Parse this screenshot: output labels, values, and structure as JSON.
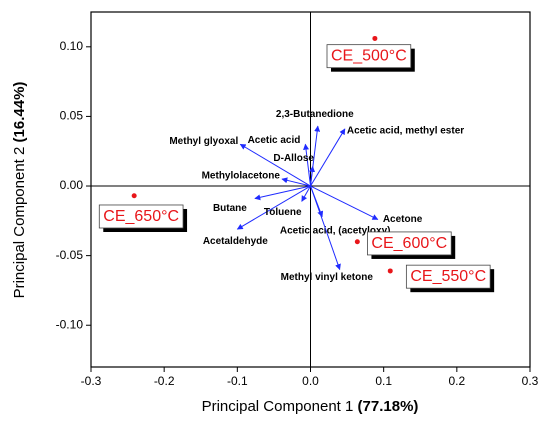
{
  "chart_data": {
    "type": "biplot",
    "x_label": {
      "text": "Principal Component 1",
      "emphasis": "(77.18%)"
    },
    "y_label": {
      "text": "Principal Component 2",
      "emphasis": "(16.44%)"
    },
    "xlim": [
      -0.3,
      0.3
    ],
    "ylim": [
      -0.13,
      0.125
    ],
    "xticks": [
      -0.3,
      -0.2,
      -0.1,
      {
        "value": 0,
        "label": "0.0"
      },
      0.1,
      0.2,
      0.3
    ],
    "yticks": [
      {
        "value": -0.1,
        "label": "-0.10"
      },
      -0.05,
      {
        "value": 0,
        "label": "0.00"
      },
      0.05,
      {
        "value": 0.1,
        "label": "0.10"
      }
    ],
    "score_color": "#e8161a",
    "loading_color": "#1f2bff",
    "scores": [
      {
        "name": "CE_500°C",
        "x": 0.088,
        "y": 0.106
      },
      {
        "name": "CE_650°C",
        "x": -0.241,
        "y": -0.007
      },
      {
        "name": "CE_600°C",
        "x": 0.064,
        "y": -0.04
      },
      {
        "name": "CE_550°C",
        "x": 0.109,
        "y": -0.061
      }
    ],
    "loadings": [
      {
        "name": "2,3-Butanedione",
        "x": 0.01,
        "y": 0.043
      },
      {
        "name": "Acetic acid, methyl ester",
        "x": 0.047,
        "y": 0.041
      },
      {
        "name": "Acetic acid",
        "x": -0.007,
        "y": 0.03
      },
      {
        "name": "Methyl glyoxal",
        "x": -0.096,
        "y": 0.03
      },
      {
        "name": "D-Allose",
        "x": 0.003,
        "y": 0.014
      },
      {
        "name": "Methylolacetone",
        "x": -0.039,
        "y": 0.005
      },
      {
        "name": "Butane",
        "x": -0.076,
        "y": -0.009
      },
      {
        "name": "Acetaldehyde",
        "x": -0.1,
        "y": -0.031
      },
      {
        "name": "Toluene",
        "x": -0.012,
        "y": -0.011
      },
      {
        "name": "Acetic acid, (acetyloxy)",
        "x": 0.016,
        "y": -0.022
      },
      {
        "name": "Acetone",
        "x": 0.092,
        "y": -0.024
      },
      {
        "name": "Methyl vinyl ketone",
        "x": 0.04,
        "y": -0.06
      }
    ]
  }
}
